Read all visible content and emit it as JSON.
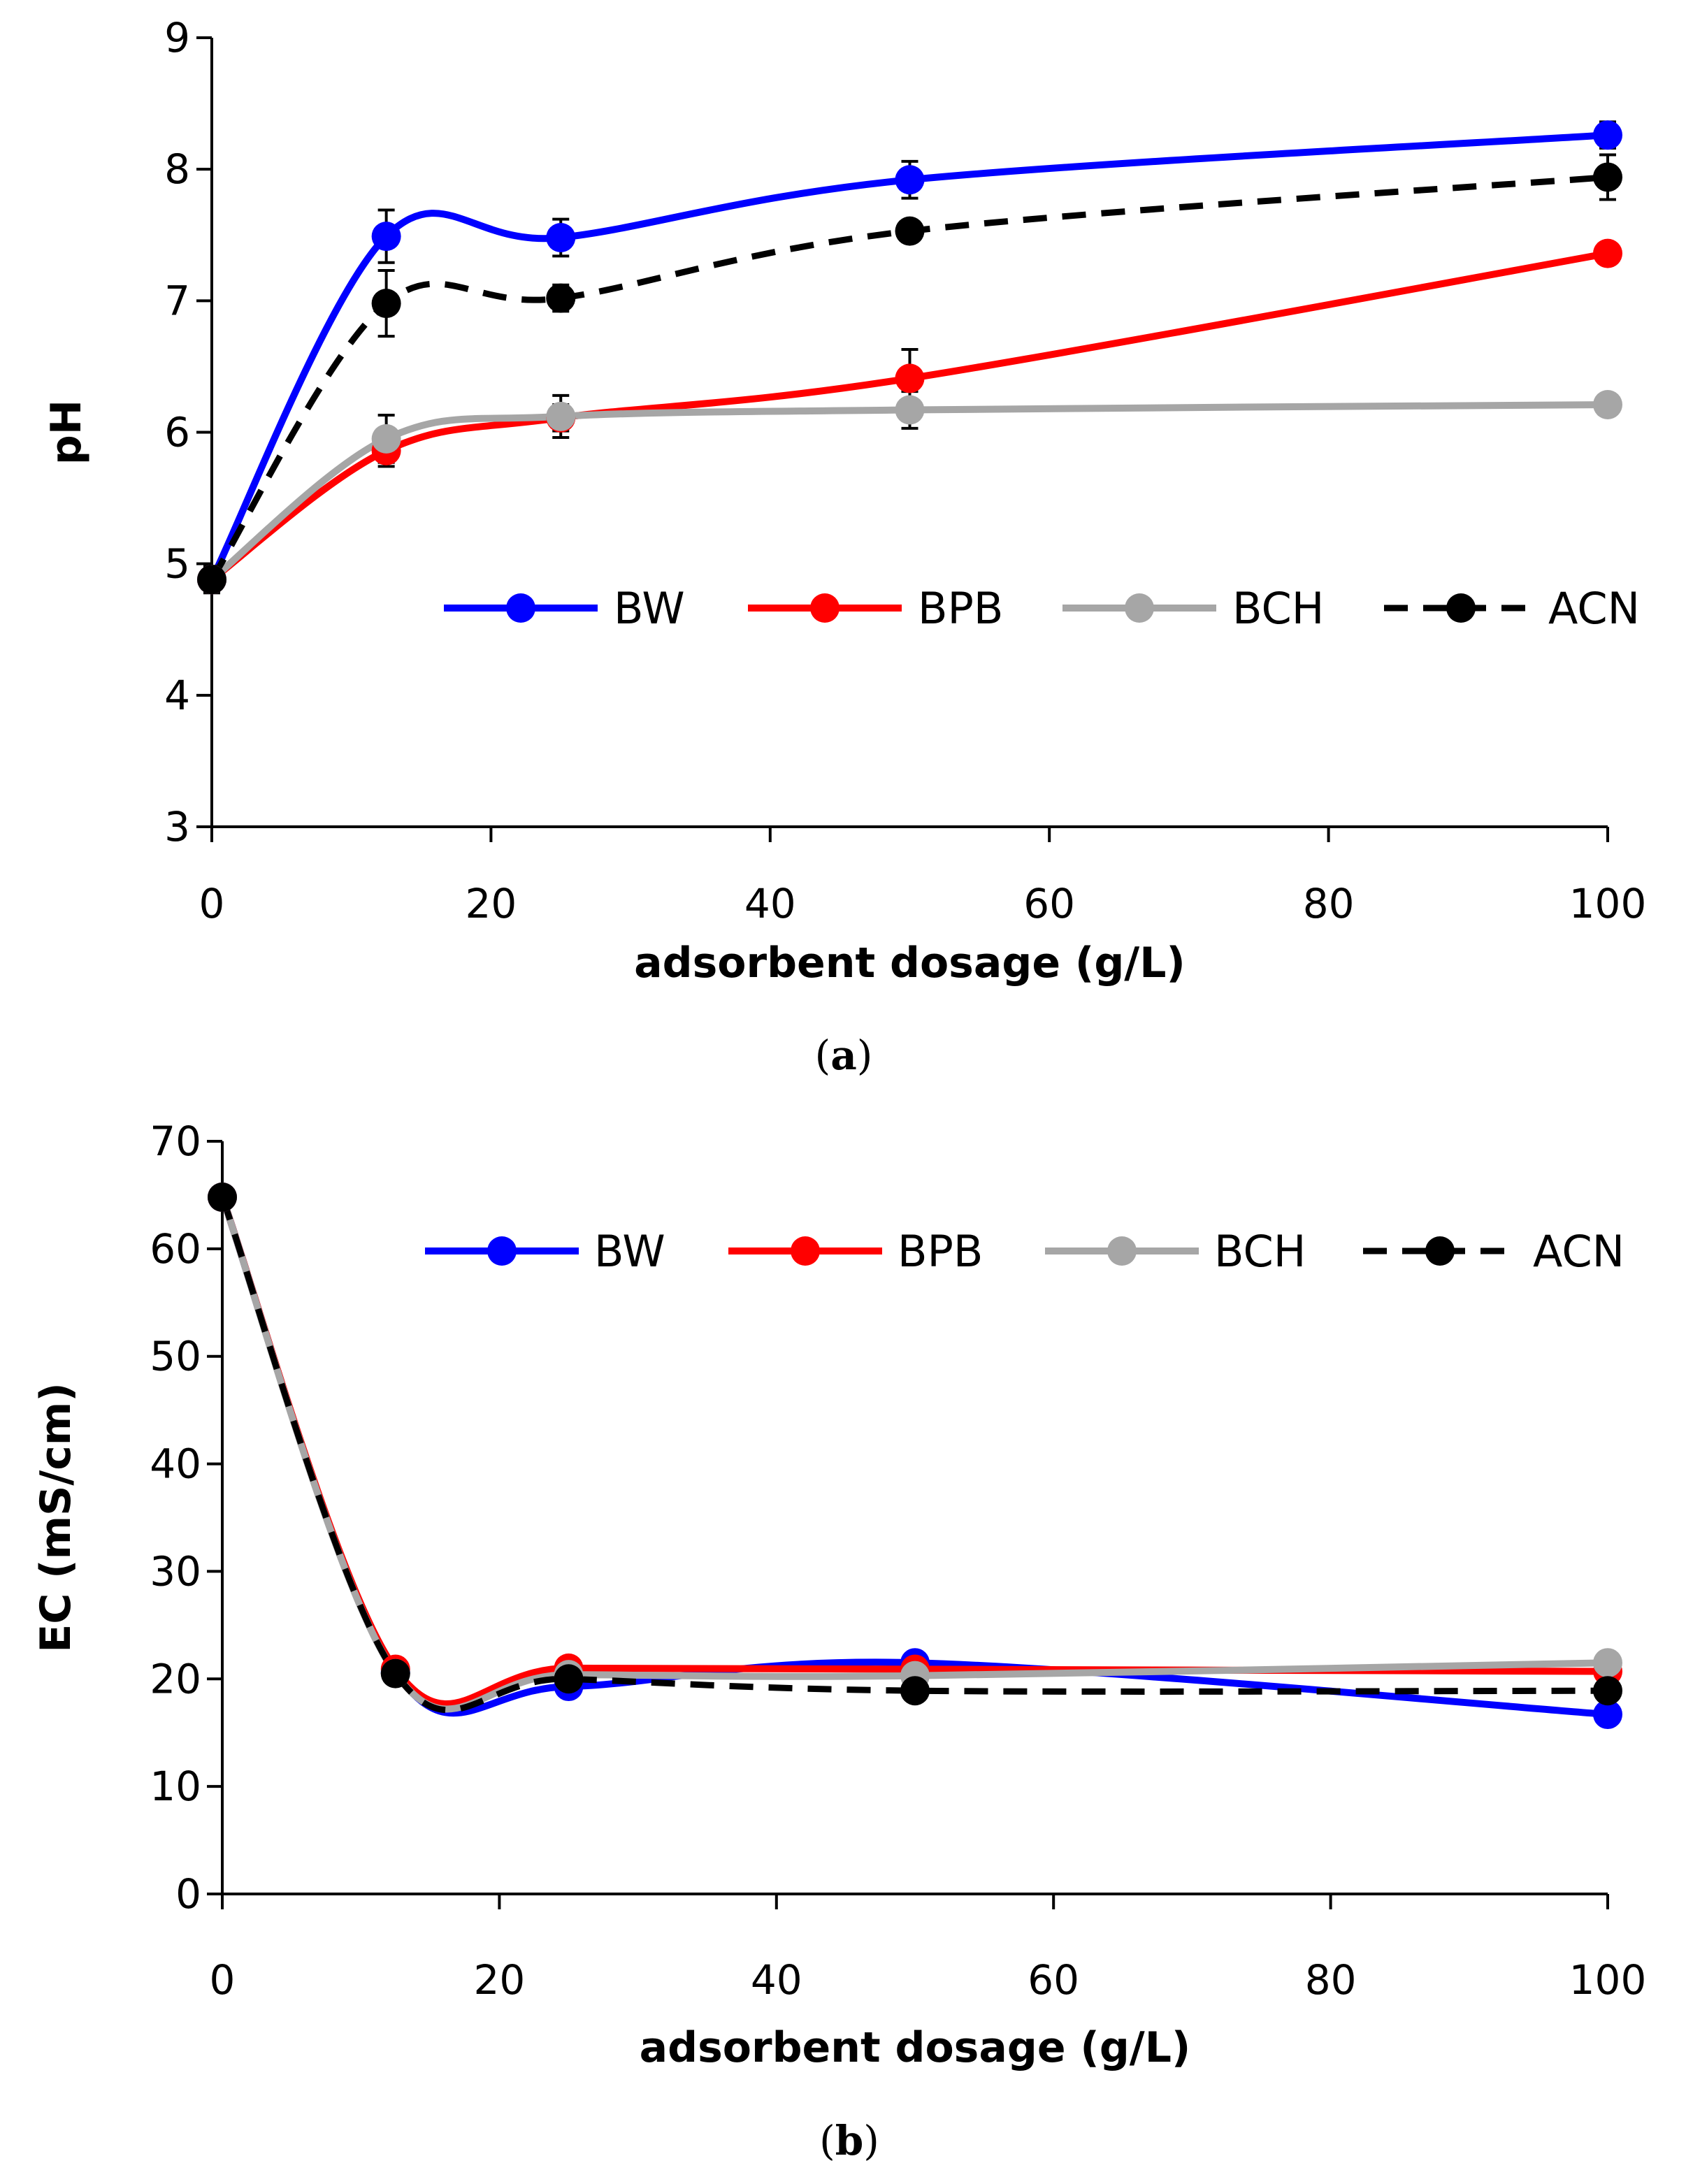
{
  "figure": {
    "panel_a_caption": {
      "open": "(",
      "letter": "a",
      "close": ")"
    },
    "panel_b_caption": {
      "open": "(",
      "letter": "b",
      "close": ")"
    }
  },
  "chart_data": [
    {
      "id": "panel-a",
      "type": "line",
      "title": "",
      "xlabel": "adsorbent dosage (g/L)",
      "ylabel": "pH",
      "xlim": [
        0,
        100
      ],
      "ylim": [
        3,
        9
      ],
      "xticks": [
        0,
        20,
        40,
        60,
        80,
        100
      ],
      "yticks": [
        3,
        4,
        5,
        6,
        7,
        8,
        9
      ],
      "legend_position": "center-right",
      "x": [
        0,
        12.5,
        25,
        50,
        100
      ],
      "series": [
        {
          "name": "BW",
          "color": "#0000ff",
          "dash": "solid",
          "values": [
            4.88,
            7.49,
            7.48,
            7.92,
            8.26
          ],
          "errors": [
            0.1,
            0.2,
            0.14,
            0.14,
            0.1
          ]
        },
        {
          "name": "BPB",
          "color": "#ff0000",
          "dash": "solid",
          "values": [
            4.88,
            5.86,
            6.11,
            6.41,
            7.36
          ],
          "errors": [
            0.1,
            0.12,
            0.1,
            0.22,
            0.05
          ]
        },
        {
          "name": "BCH",
          "color": "#a6a6a6",
          "dash": "solid",
          "values": [
            4.88,
            5.95,
            6.12,
            6.17,
            6.21
          ],
          "errors": [
            0.1,
            0.18,
            0.16,
            0.14,
            0.08
          ]
        },
        {
          "name": "ACN",
          "color": "#000000",
          "dash": "dashed",
          "values": [
            4.88,
            6.98,
            7.02,
            7.53,
            7.94
          ],
          "errors": [
            0.1,
            0.25,
            0.1,
            0.05,
            0.17
          ]
        }
      ]
    },
    {
      "id": "panel-b",
      "type": "line",
      "title": "",
      "xlabel": "adsorbent dosage (g/L)",
      "ylabel": "EC (mS/cm)",
      "xlim": [
        0,
        100
      ],
      "ylim": [
        0,
        70
      ],
      "xticks": [
        0,
        20,
        40,
        60,
        80,
        100
      ],
      "yticks": [
        0,
        10,
        20,
        30,
        40,
        50,
        60,
        70
      ],
      "legend_position": "top-right",
      "x": [
        0,
        12.5,
        25,
        50,
        100
      ],
      "series": [
        {
          "name": "BW",
          "color": "#0000ff",
          "dash": "solid",
          "values": [
            64.8,
            20.6,
            19.3,
            21.5,
            16.7
          ]
        },
        {
          "name": "BPB",
          "color": "#ff0000",
          "dash": "solid",
          "values": [
            64.8,
            20.9,
            21.0,
            20.9,
            20.7
          ]
        },
        {
          "name": "BCH",
          "color": "#a6a6a6",
          "dash": "solid",
          "values": [
            64.8,
            20.5,
            20.4,
            20.3,
            21.5
          ]
        },
        {
          "name": "ACN",
          "color": "#000000",
          "dash": "dashed",
          "values": [
            64.8,
            20.5,
            20.0,
            18.9,
            18.9
          ]
        }
      ]
    }
  ]
}
